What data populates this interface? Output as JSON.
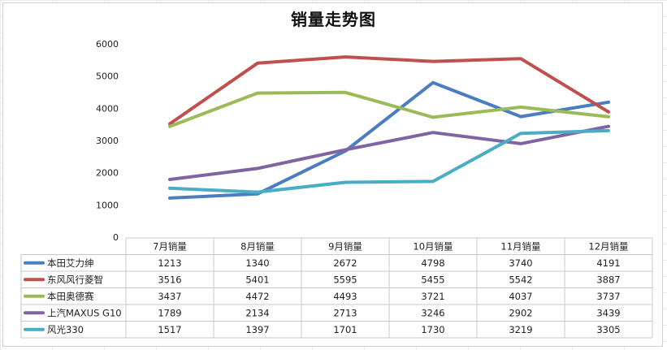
{
  "chart_data": {
    "type": "line",
    "title": "销量走势图",
    "categories": [
      "7月销量",
      "8月销量",
      "9月销量",
      "10月销量",
      "11月销量",
      "12月销量"
    ],
    "ylim": [
      0,
      6000
    ],
    "yticks": [
      0,
      1000,
      2000,
      3000,
      4000,
      5000,
      6000
    ],
    "grid": false,
    "legend": "data-table-left",
    "series": [
      {
        "name": "本田艾力绅",
        "color": "#4a7ec1",
        "values": [
          1213,
          1340,
          2672,
          4798,
          3740,
          4191
        ]
      },
      {
        "name": "东风风行菱智",
        "color": "#c0504d",
        "values": [
          3516,
          5401,
          5595,
          5455,
          5542,
          3887
        ]
      },
      {
        "name": "本田奥德赛",
        "color": "#9bbb59",
        "values": [
          3437,
          4472,
          4493,
          3721,
          4037,
          3737
        ]
      },
      {
        "name": "上汽MAXUS G10",
        "color": "#8064a2",
        "values": [
          1789,
          2134,
          2713,
          3246,
          2902,
          3439
        ]
      },
      {
        "name": "风光330",
        "color": "#4bacc6",
        "values": [
          1517,
          1397,
          1701,
          1730,
          3219,
          3305
        ]
      }
    ]
  }
}
